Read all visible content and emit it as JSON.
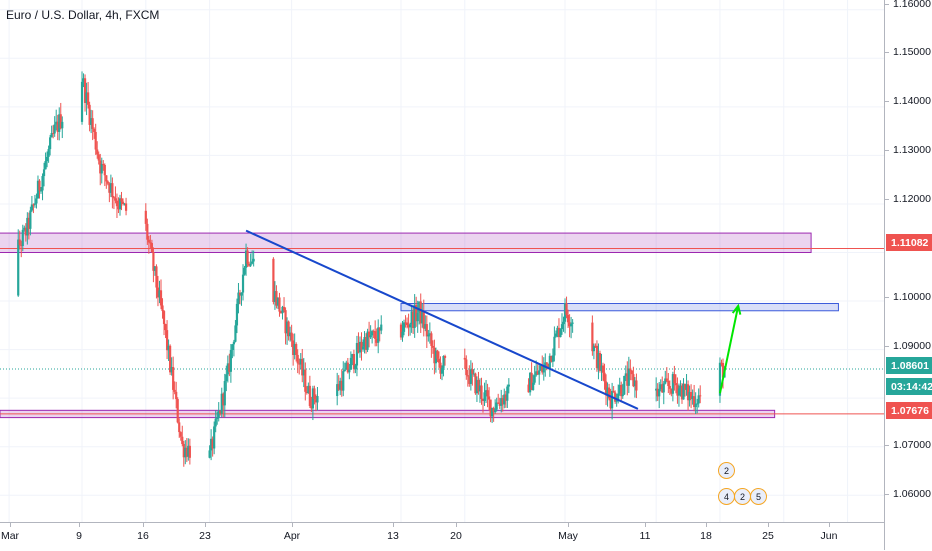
{
  "symbol_title": "Euro / U.S. Dollar, 4h, FXCM",
  "price_axis": {
    "ticks": [
      "1.16000",
      "1.15000",
      "1.14000",
      "1.13000",
      "1.12000",
      "1.10000",
      "1.09000",
      "1.07000",
      "1.06000"
    ],
    "badges": [
      {
        "label": "1.11082",
        "color": "#ef5350"
      },
      {
        "label": "1.08601",
        "color": "#26a69a"
      },
      {
        "label": "03:14:42",
        "color": "#26a69a"
      },
      {
        "label": "1.07676",
        "color": "#ef5350"
      }
    ]
  },
  "time_axis": {
    "labels": [
      "Mar",
      "9",
      "16",
      "23",
      "Apr",
      "13",
      "20",
      "May",
      "11",
      "18",
      "25",
      "Jun"
    ]
  },
  "event_badges": {
    "top": "2",
    "bottom": [
      "4",
      "2",
      "5"
    ]
  },
  "colors": {
    "up_candle": "#26a69a",
    "down_candle": "#ef5350",
    "resistance_zone": "#9c27b0",
    "trendline": "#1848cc",
    "target_arrow": "#00e600",
    "grid": "#f0f3fa"
  },
  "chart_data": {
    "type": "candlestick",
    "title": "Euro / U.S. Dollar, 4h, FXCM",
    "xlabel": "",
    "ylabel": "",
    "ylim": [
      1.0545,
      1.162
    ],
    "grid": true,
    "x_range": [
      "2020-02-29",
      "2020-06-05"
    ],
    "anchors": [
      {
        "date": "2020-02-28",
        "price": 1.099
      },
      {
        "date": "2020-03-03",
        "price": 1.115
      },
      {
        "date": "2020-03-06",
        "price": 1.135
      },
      {
        "date": "2020-03-09",
        "price": 1.146
      },
      {
        "date": "2020-03-11",
        "price": 1.128
      },
      {
        "date": "2020-03-13",
        "price": 1.12
      },
      {
        "date": "2020-03-16",
        "price": 1.115
      },
      {
        "date": "2020-03-18",
        "price": 1.095
      },
      {
        "date": "2020-03-20",
        "price": 1.07
      },
      {
        "date": "2020-03-23",
        "price": 1.068
      },
      {
        "date": "2020-03-25",
        "price": 1.085
      },
      {
        "date": "2020-03-27",
        "price": 1.11
      },
      {
        "date": "2020-03-30",
        "price": 1.102
      },
      {
        "date": "2020-04-01",
        "price": 1.092
      },
      {
        "date": "2020-04-03",
        "price": 1.08
      },
      {
        "date": "2020-04-06",
        "price": 1.082
      },
      {
        "date": "2020-04-09",
        "price": 1.092
      },
      {
        "date": "2020-04-13",
        "price": 1.094
      },
      {
        "date": "2020-04-15",
        "price": 1.098
      },
      {
        "date": "2020-04-17",
        "price": 1.087
      },
      {
        "date": "2020-04-20",
        "price": 1.086
      },
      {
        "date": "2020-04-23",
        "price": 1.078
      },
      {
        "date": "2020-04-24",
        "price": 1.08
      },
      {
        "date": "2020-04-27",
        "price": 1.083
      },
      {
        "date": "2020-04-29",
        "price": 1.087
      },
      {
        "date": "2020-05-01",
        "price": 1.098
      },
      {
        "date": "2020-05-04",
        "price": 1.091
      },
      {
        "date": "2020-05-06",
        "price": 1.08
      },
      {
        "date": "2020-05-08",
        "price": 1.084
      },
      {
        "date": "2020-05-11",
        "price": 1.081
      },
      {
        "date": "2020-05-13",
        "price": 1.083
      },
      {
        "date": "2020-05-15",
        "price": 1.08
      },
      {
        "date": "2020-05-17",
        "price": 1.081
      },
      {
        "date": "2020-05-18",
        "price": 1.086
      }
    ],
    "horizontal_lines": [
      {
        "price": 1.11082,
        "color": "#ef5350"
      },
      {
        "price": 1.07676,
        "color": "#ef5350"
      }
    ],
    "current_price": 1.08601,
    "zones": [
      {
        "from": "2020-02-28",
        "to": "2020-05-28",
        "low": 1.11,
        "high": 1.114,
        "color": "#9c27b0"
      },
      {
        "from": "2020-04-13",
        "to": "2020-05-31",
        "low": 1.098,
        "high": 1.0995,
        "color": "#3b5bdb"
      },
      {
        "from": "2020-02-29",
        "to": "2020-05-24",
        "low": 1.076,
        "high": 1.0775,
        "color": "#9c27b0"
      }
    ],
    "trendline": {
      "from": {
        "date": "2020-03-27",
        "price": 1.1145
      },
      "to": {
        "date": "2020-05-09",
        "price": 1.0778
      }
    },
    "projection_arrow": {
      "from": {
        "date": "2020-05-18",
        "price": 1.081
      },
      "to": {
        "date": "2020-05-20",
        "price": 1.099
      }
    }
  }
}
